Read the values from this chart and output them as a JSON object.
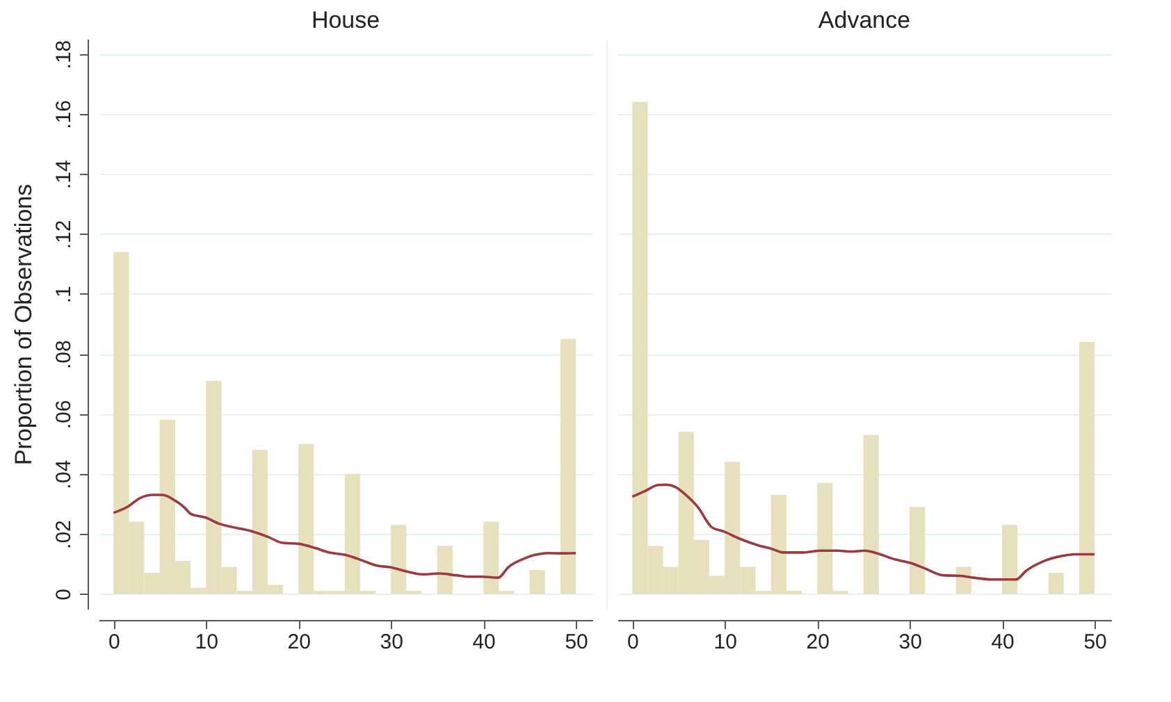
{
  "chart_data": [
    {
      "type": "histogram",
      "title": "House",
      "ylabel": "Proportion of Observations",
      "xlim": [
        -1.6,
        51.8
      ],
      "ylim": [
        -0.005,
        0.185
      ],
      "xticks": [
        0,
        10,
        20,
        30,
        40,
        50
      ],
      "yticks": [
        0,
        {
          "value": 0.02,
          "label": ".02"
        },
        {
          "value": 0.04,
          "label": ".04"
        },
        {
          "value": 0.06,
          "label": ".06"
        },
        {
          "value": 0.08,
          "label": ".08"
        },
        {
          "value": 0.1,
          "label": ".1"
        },
        {
          "value": 0.12,
          "label": ".12"
        },
        {
          "value": 0.14,
          "label": ".14"
        },
        {
          "value": 0.16,
          "label": ".16"
        },
        {
          "value": 0.18,
          "label": ".18"
        }
      ],
      "grid": "y",
      "series": [
        {
          "type": "histogram",
          "color": "#e6e0bc",
          "bins": [
            0,
            1.667,
            3.333,
            5,
            6.667,
            8.333,
            10,
            11.667,
            13.333,
            15,
            16.667,
            18.333,
            20,
            21.667,
            23.333,
            25,
            26.667,
            28.333,
            30,
            31.667,
            33.333,
            35,
            36.667,
            38.333,
            40,
            41.667,
            43.333,
            45,
            46.667,
            48.333,
            50
          ],
          "values": [
            0.114,
            0.024,
            0.007,
            0.058,
            0.011,
            0.002,
            0.071,
            0.009,
            0.001,
            0.048,
            0.003,
            0,
            0.05,
            0.001,
            0.001,
            0.04,
            0.001,
            0,
            0.023,
            0.001,
            0,
            0.016,
            0,
            0,
            0.024,
            0.001,
            0,
            0.008,
            0,
            0.085
          ]
        },
        {
          "type": "line",
          "color": "#9b3a40",
          "x": [
            0,
            1.5,
            2.9,
            4.3,
            5.3,
            6.7,
            7.6,
            8.4,
            10,
            11.4,
            13.3,
            14.8,
            16.7,
            18.3,
            20,
            21.9,
            23.3,
            25.2,
            27.1,
            28.5,
            29.9,
            31.8,
            33.5,
            35.2,
            37,
            38.5,
            39.9,
            41.6,
            42.7,
            44.2,
            45.6,
            47,
            48.4,
            50
          ],
          "values": [
            0.027,
            0.029,
            0.032,
            0.033,
            0.033,
            0.031,
            0.029,
            0.0266,
            0.0254,
            0.0234,
            0.022,
            0.021,
            0.019,
            0.017,
            0.0167,
            0.0152,
            0.0138,
            0.0129,
            0.0109,
            0.0094,
            0.0089,
            0.0074,
            0.0065,
            0.0068,
            0.0062,
            0.0057,
            0.0057,
            0.0054,
            0.0089,
            0.0115,
            0.013,
            0.0136,
            0.0135,
            0.0136
          ]
        }
      ]
    },
    {
      "type": "histogram",
      "title": "Advance",
      "xlim": [
        -1.6,
        51.8
      ],
      "ylim": [
        -0.005,
        0.185
      ],
      "xticks": [
        0,
        10,
        20,
        30,
        40,
        50
      ],
      "yticks": [
        0,
        0.02,
        0.04,
        0.06,
        0.08,
        0.1,
        0.12,
        0.14,
        0.16,
        0.18
      ],
      "grid": "y",
      "tick_labels": "x",
      "series": [
        {
          "type": "histogram",
          "color": "#e6e0bc",
          "bins": [
            0,
            1.667,
            3.333,
            5,
            6.667,
            8.333,
            10,
            11.667,
            13.333,
            15,
            16.667,
            18.333,
            20,
            21.667,
            23.333,
            25,
            26.667,
            28.333,
            30,
            31.667,
            33.333,
            35,
            36.667,
            38.333,
            40,
            41.667,
            43.333,
            45,
            46.667,
            48.333,
            50
          ],
          "values": [
            0.164,
            0.016,
            0.009,
            0.054,
            0.018,
            0.006,
            0.044,
            0.009,
            0.001,
            0.033,
            0.001,
            0,
            0.037,
            0.001,
            0,
            0.053,
            0,
            0,
            0.029,
            0,
            0,
            0.009,
            0,
            0,
            0.023,
            0,
            0,
            0.007,
            0,
            0.084
          ]
        },
        {
          "type": "line",
          "color": "#9b3a40",
          "x": [
            0,
            1.4,
            2.8,
            3.7,
            4.7,
            5.6,
            7.1,
            8.6,
            9.9,
            11.6,
            13.7,
            15.1,
            16.3,
            18.5,
            20.4,
            22.2,
            23.7,
            25.1,
            26.5,
            28.4,
            30.1,
            31.7,
            33.6,
            35.5,
            36.9,
            38.9,
            41.5,
            42.6,
            44.5,
            46.4,
            47.9,
            50
          ],
          "values": [
            0.0324,
            0.0343,
            0.0363,
            0.0364,
            0.0356,
            0.0335,
            0.0289,
            0.0222,
            0.0208,
            0.0184,
            0.0161,
            0.015,
            0.0138,
            0.0138,
            0.0144,
            0.0144,
            0.0141,
            0.0144,
            0.0135,
            0.0115,
            0.0103,
            0.0084,
            0.0062,
            0.006,
            0.0054,
            0.0048,
            0.0048,
            0.0077,
            0.0109,
            0.0126,
            0.0132,
            0.0132
          ]
        }
      ]
    }
  ]
}
